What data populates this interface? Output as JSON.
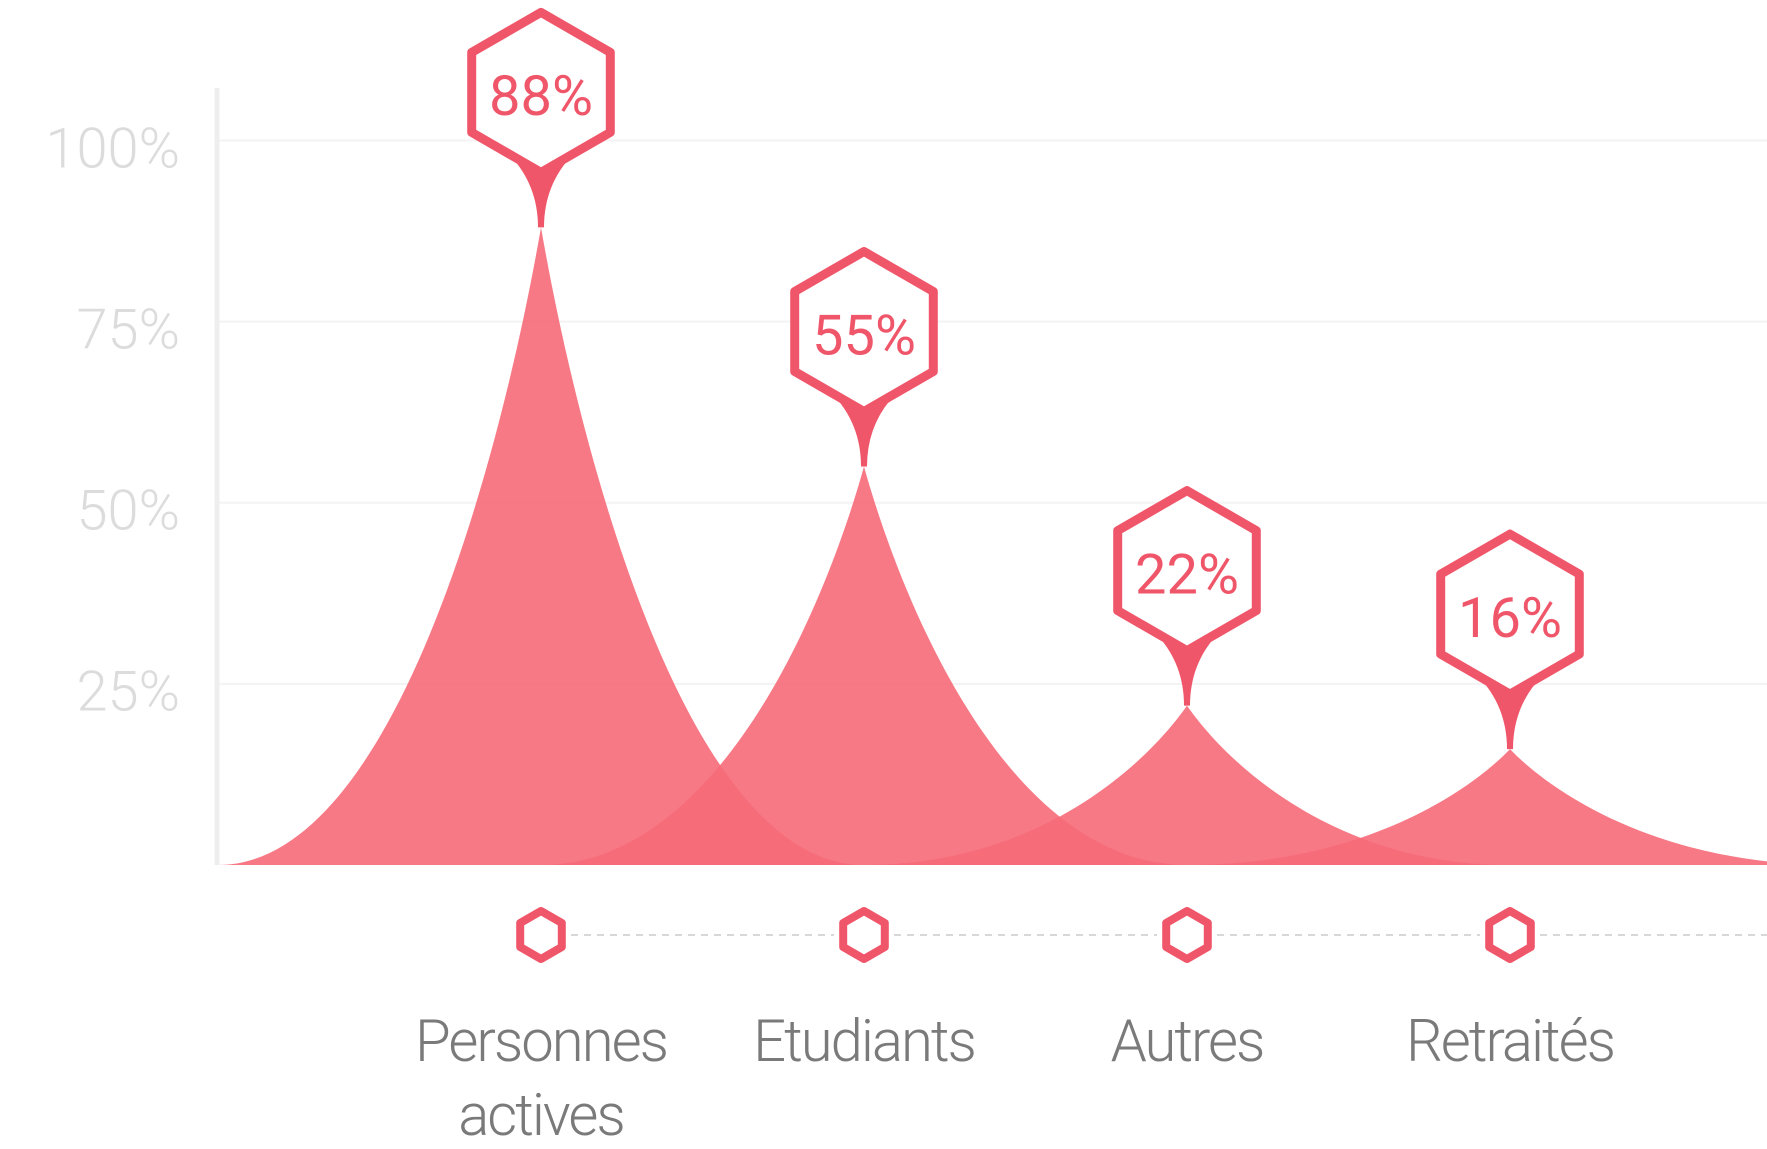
{
  "chart_data": {
    "type": "spike",
    "categories": [
      "Personnes actives",
      "Etudiants",
      "Autres",
      "Retraités"
    ],
    "values": [
      88,
      55,
      22,
      16
    ],
    "value_labels": [
      "88%",
      "55%",
      "22%",
      "16%"
    ],
    "color": "#f66a78",
    "ylim": [
      0,
      110
    ],
    "yticks": [
      {
        "value": 25,
        "label": "25%"
      },
      {
        "value": 50,
        "label": "50%"
      },
      {
        "value": 75,
        "label": "75%"
      },
      {
        "value": 100,
        "label": "100%"
      }
    ],
    "grid": true
  }
}
